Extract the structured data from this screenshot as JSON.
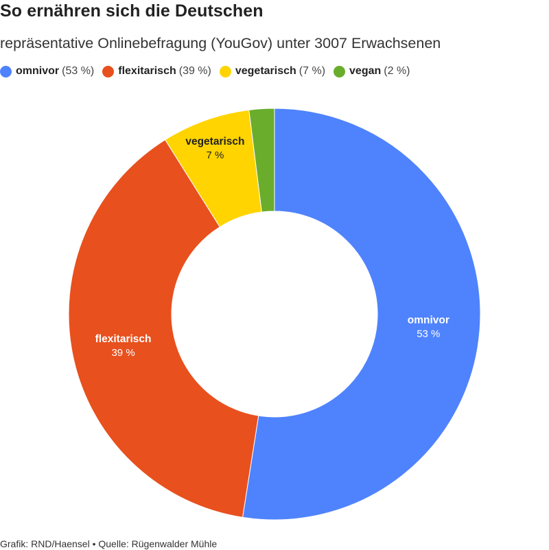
{
  "header": {
    "title": "So ernähren sich die Deutschen",
    "subtitle": "repräsentative Onlinebefragung (YouGov) unter 3007 Erwachsenen"
  },
  "legend": [
    {
      "name": "omnivor",
      "value_label": "(53 %)"
    },
    {
      "name": "flexitarisch",
      "value_label": "(39 %)"
    },
    {
      "name": "vegetarisch",
      "value_label": "(7 %)"
    },
    {
      "name": "vegan",
      "value_label": "(2 %)"
    }
  ],
  "footer": {
    "text": "Grafik: RND/Haensel • Quelle: Rügenwalder Mühle"
  },
  "chart_data": {
    "type": "pie",
    "donut": true,
    "title": "So ernähren sich die Deutschen",
    "subtitle": "repräsentative Onlinebefragung (YouGov) unter 3007 Erwachsenen",
    "legend_position": "top-left",
    "slices": [
      {
        "name": "omnivor",
        "value": 53,
        "label": "53 %",
        "color": "#4f83fd",
        "label_color": "#ffffff"
      },
      {
        "name": "flexitarisch",
        "value": 39,
        "label": "39 %",
        "color": "#e8501e",
        "label_color": "#ffffff"
      },
      {
        "name": "vegetarisch",
        "value": 7,
        "label": "7 %",
        "color": "#ffd400",
        "label_color": "#222222"
      },
      {
        "name": "vegan",
        "value": 2,
        "label": "",
        "color": "#6aad2c",
        "label_color": "#222222"
      }
    ]
  }
}
